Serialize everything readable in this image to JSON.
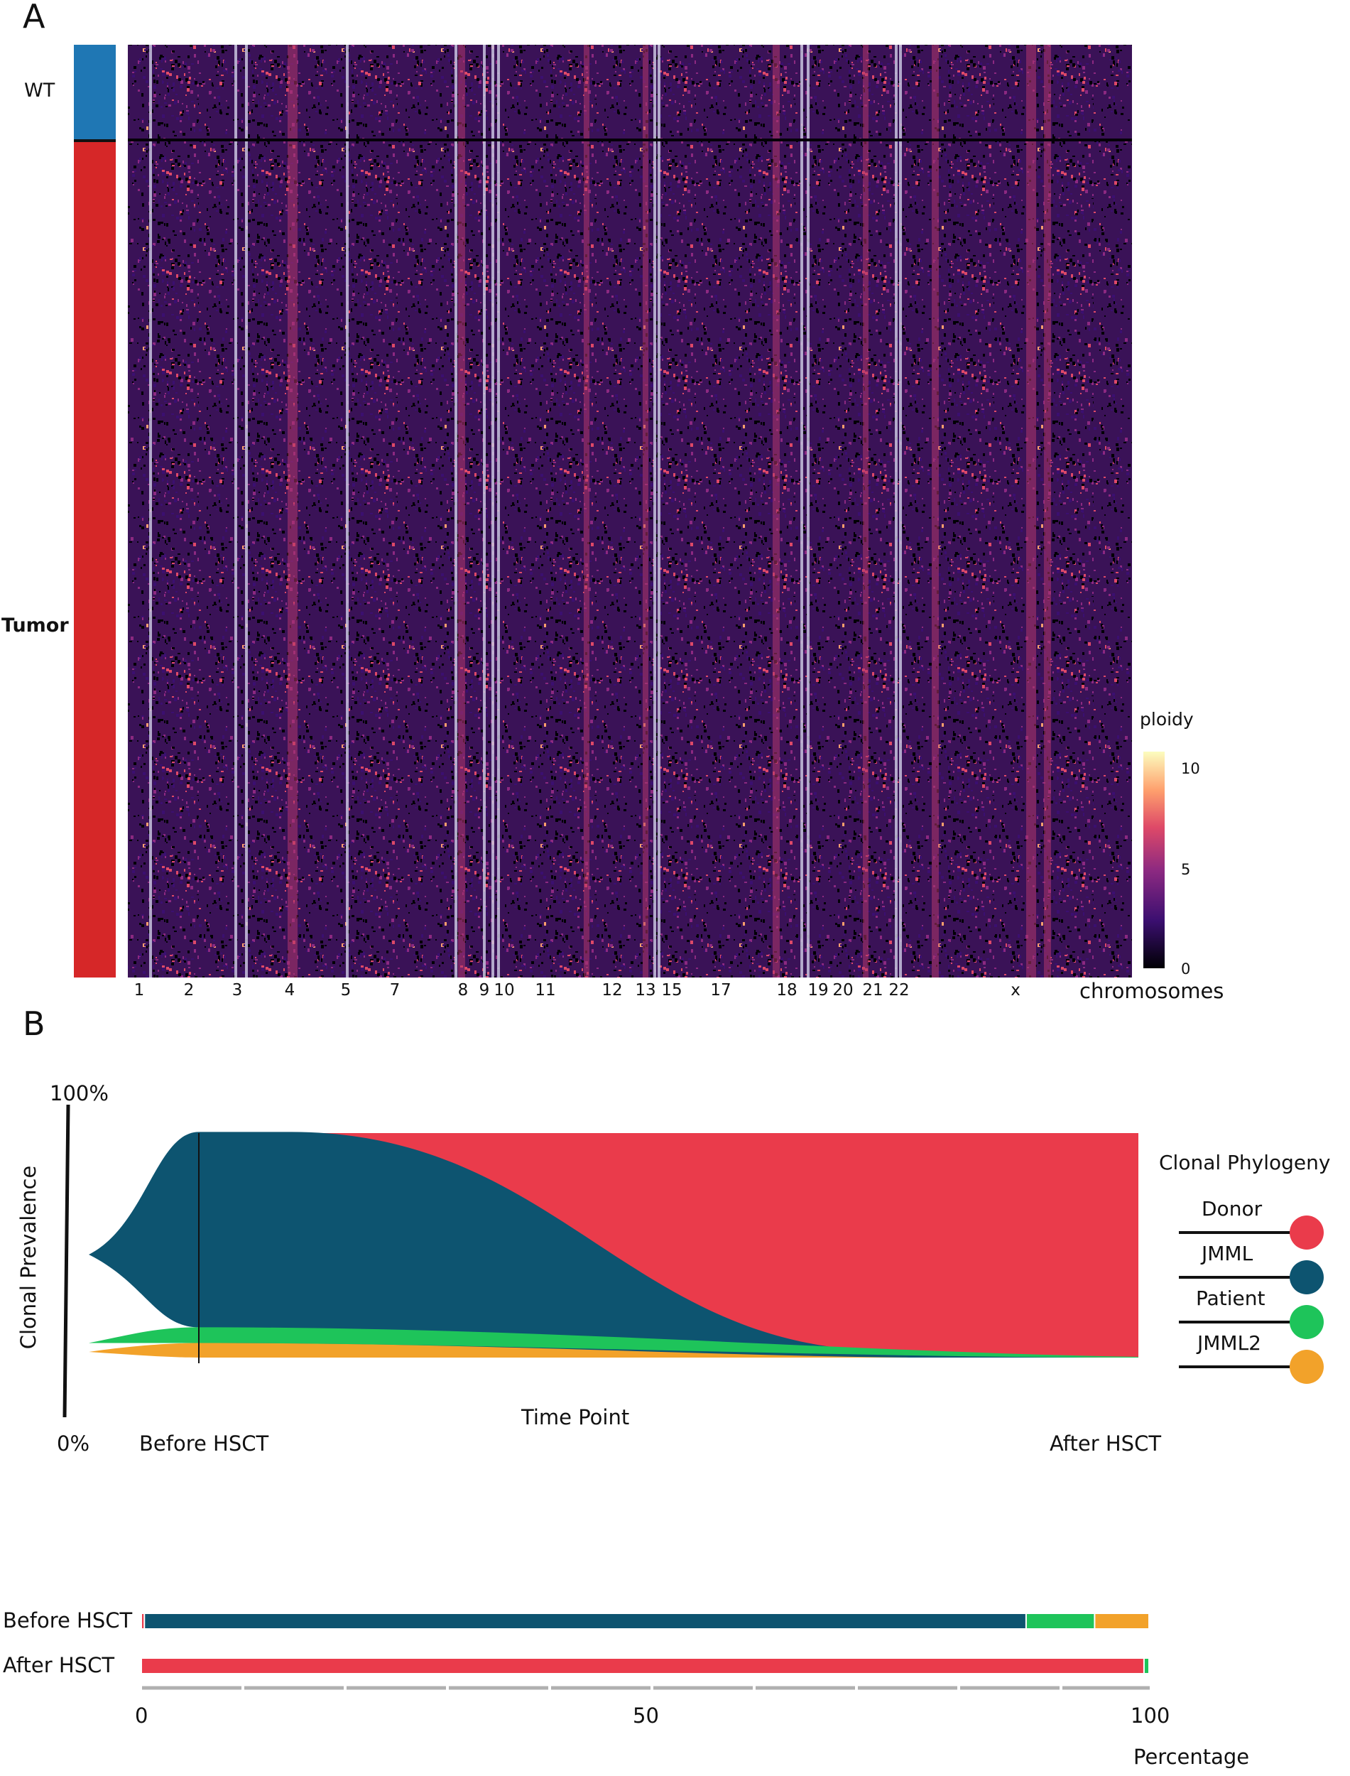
{
  "panel_a": {
    "letter": "A",
    "row_groups": [
      {
        "label": "WT",
        "color": "#1f77b4",
        "fraction": 0.103
      },
      {
        "label": "Tumor",
        "color": "#d62728",
        "fraction": 0.897
      }
    ],
    "chromosome_axis_label": "chromosomes",
    "chromosomes": [
      "1",
      "2",
      "3",
      "4",
      "5",
      "7",
      "8",
      "9",
      "10",
      "11",
      "12",
      "13",
      "15",
      "17",
      "18",
      "19",
      "20",
      "21",
      "22",
      "x"
    ],
    "colorbar": {
      "title": "ploidy",
      "ticks": [
        "10",
        "5",
        "0"
      ],
      "range": [
        0,
        11
      ],
      "colors": [
        "#000004",
        "#3b0f70",
        "#8c2981",
        "#de4968",
        "#fe9f6d",
        "#fcfdbf"
      ]
    }
  },
  "panel_b": {
    "letter": "B",
    "y_top_label": "100%",
    "y_bottom_label": "0%",
    "y_axis_label": "Clonal Prevalence",
    "x_axis_label": "Time Point",
    "time_points": [
      "Before HSCT",
      "After HSCT"
    ],
    "legend_title": "Clonal Phylogeny",
    "clones": [
      {
        "name": "Donor",
        "color": "#ea3b4b"
      },
      {
        "name": "JMML",
        "color": "#0d5470"
      },
      {
        "name": "Patient",
        "color": "#1ec45a"
      },
      {
        "name": "JMML2",
        "color": "#f2a22a"
      }
    ]
  },
  "chart_data": [
    {
      "type": "heatmap",
      "title": "",
      "xlabel": "chromosomes",
      "ylabel": "",
      "x_categories": [
        "1",
        "2",
        "3",
        "4",
        "5",
        "7",
        "8",
        "9",
        "10",
        "11",
        "12",
        "13",
        "15",
        "17",
        "18",
        "19",
        "20",
        "21",
        "22",
        "x"
      ],
      "row_groups": [
        "WT",
        "Tumor"
      ],
      "value_label": "ploidy",
      "value_range": [
        0,
        11
      ]
    },
    {
      "type": "area",
      "title": "",
      "xlabel": "Time Point",
      "ylabel": "Clonal Prevalence",
      "x": [
        "Before HSCT",
        "After HSCT"
      ],
      "ylim": [
        0,
        100
      ],
      "series": [
        {
          "name": "JMML",
          "values": [
            87,
            0
          ]
        },
        {
          "name": "Patient",
          "values": [
            7,
            0.5
          ]
        },
        {
          "name": "JMML2",
          "values": [
            5.5,
            0
          ]
        },
        {
          "name": "Donor",
          "values": [
            0.5,
            99.5
          ]
        }
      ]
    },
    {
      "type": "bar",
      "title": "",
      "xlabel": "Percentage",
      "ylabel": "",
      "categories": [
        "Before HSCT",
        "After HSCT"
      ],
      "xlim": [
        0,
        100
      ],
      "x_ticks": [
        "0",
        "50",
        "100"
      ],
      "series": [
        {
          "name": "Donor",
          "values": [
            0.3,
            99.5
          ]
        },
        {
          "name": "JMML",
          "values": [
            87.5,
            0
          ]
        },
        {
          "name": "Patient",
          "values": [
            6.8,
            0.5
          ]
        },
        {
          "name": "JMML2",
          "values": [
            5.4,
            0
          ]
        }
      ]
    }
  ]
}
